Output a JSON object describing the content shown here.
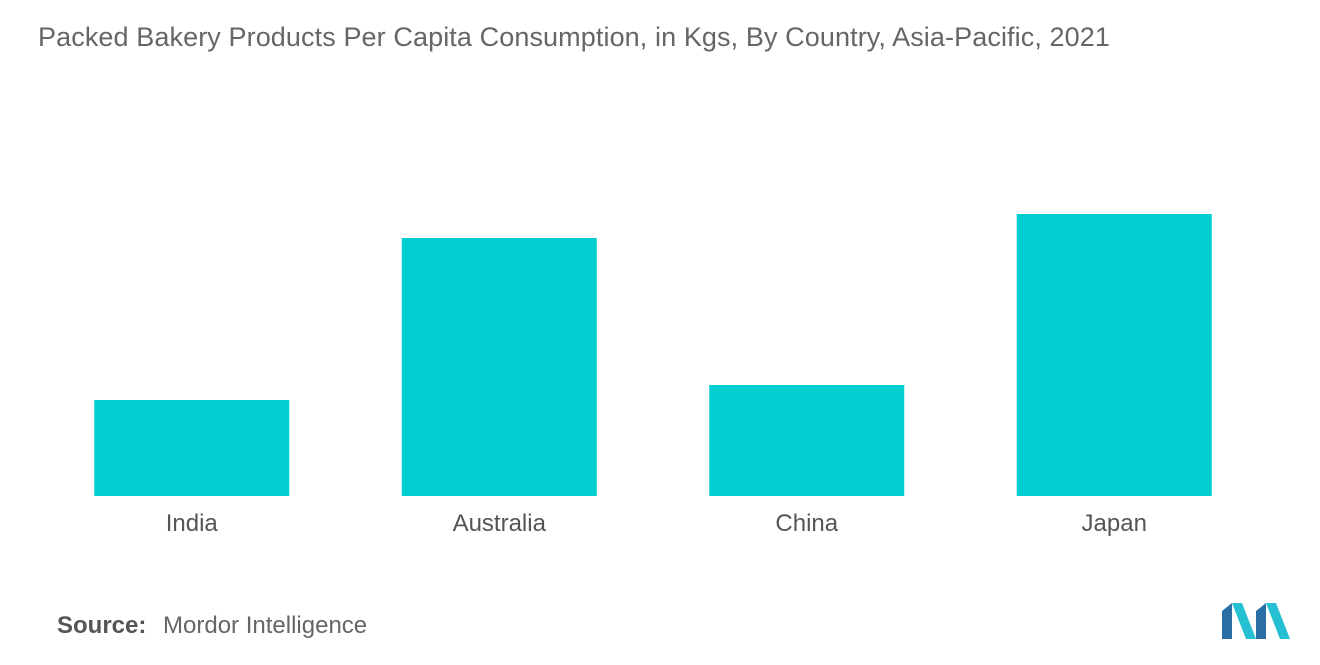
{
  "title": "Packed Bakery Products Per Capita Consumption, in Kgs, By Country, Asia-Pacific, 2021",
  "source": {
    "label": "Source:",
    "value": "Mordor Intelligence"
  },
  "logo": {
    "icon": "mordor-intelligence-logo",
    "colors": [
      "#2a6fa3",
      "#26c0d3"
    ]
  },
  "colors": {
    "bar": "#00ced1",
    "text": "#666666"
  },
  "chart_data": {
    "type": "bar",
    "title": "Packed Bakery Products Per Capita Consumption, in Kgs, By Country, Asia-Pacific, 2021",
    "categories": [
      "India",
      "Australia",
      "China",
      "Japan"
    ],
    "values": [
      1.6,
      4.3,
      1.85,
      4.7
    ],
    "ylim": [
      0,
      5
    ],
    "xlabel": "",
    "ylabel": "",
    "grid": false,
    "legend": "none"
  }
}
